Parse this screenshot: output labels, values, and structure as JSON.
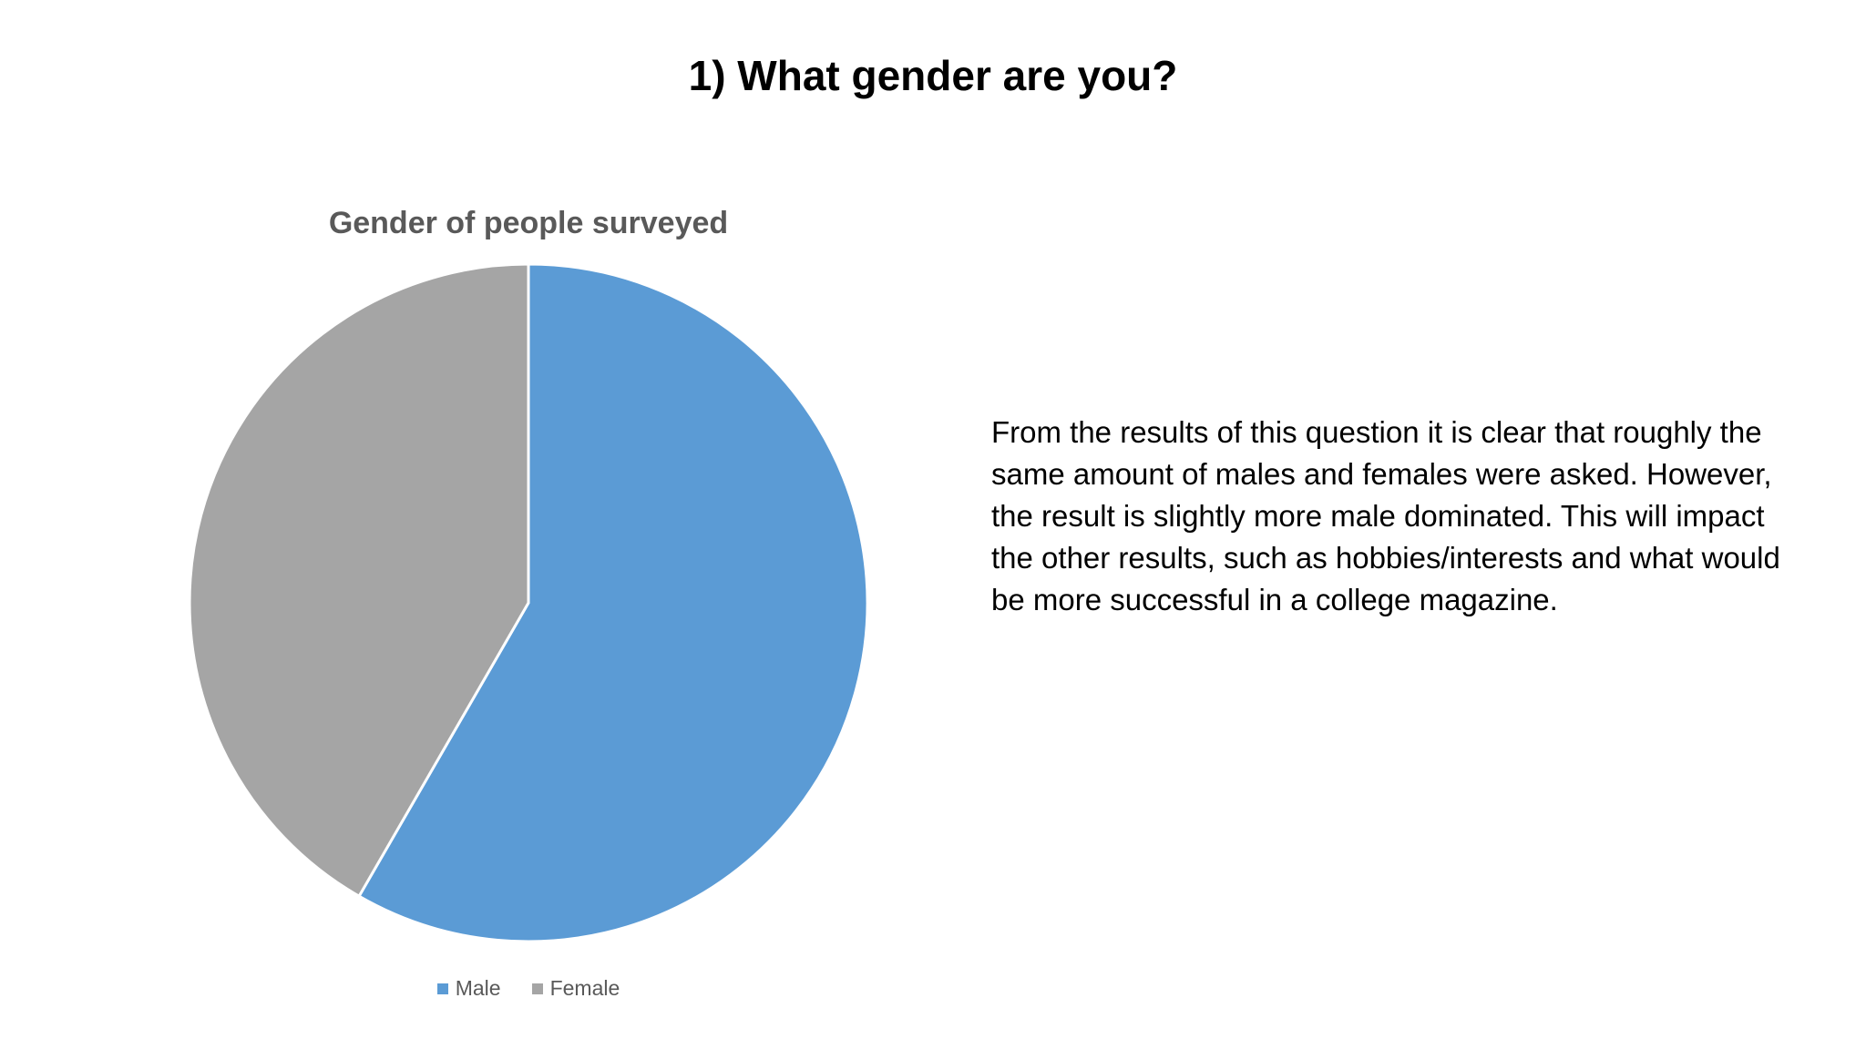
{
  "slide": {
    "title": "1) What gender are you?",
    "description": "From the results of this question it is clear that roughly the same amount of males and females were asked. However, the result is slightly more male dominated. This will impact the other results, such as hobbies/interests and what would be more successful in a college magazine."
  },
  "chart_data": {
    "type": "pie",
    "title": "Gender of people surveyed",
    "legend_position": "bottom",
    "categories": [
      "Male",
      "Female"
    ],
    "values": [
      58.33,
      41.67
    ],
    "colors": [
      "#5B9BD5",
      "#A5A5A5"
    ],
    "legend": [
      {
        "label": "Male",
        "color": "#5B9BD5"
      },
      {
        "label": "Female",
        "color": "#A5A5A5"
      }
    ]
  }
}
